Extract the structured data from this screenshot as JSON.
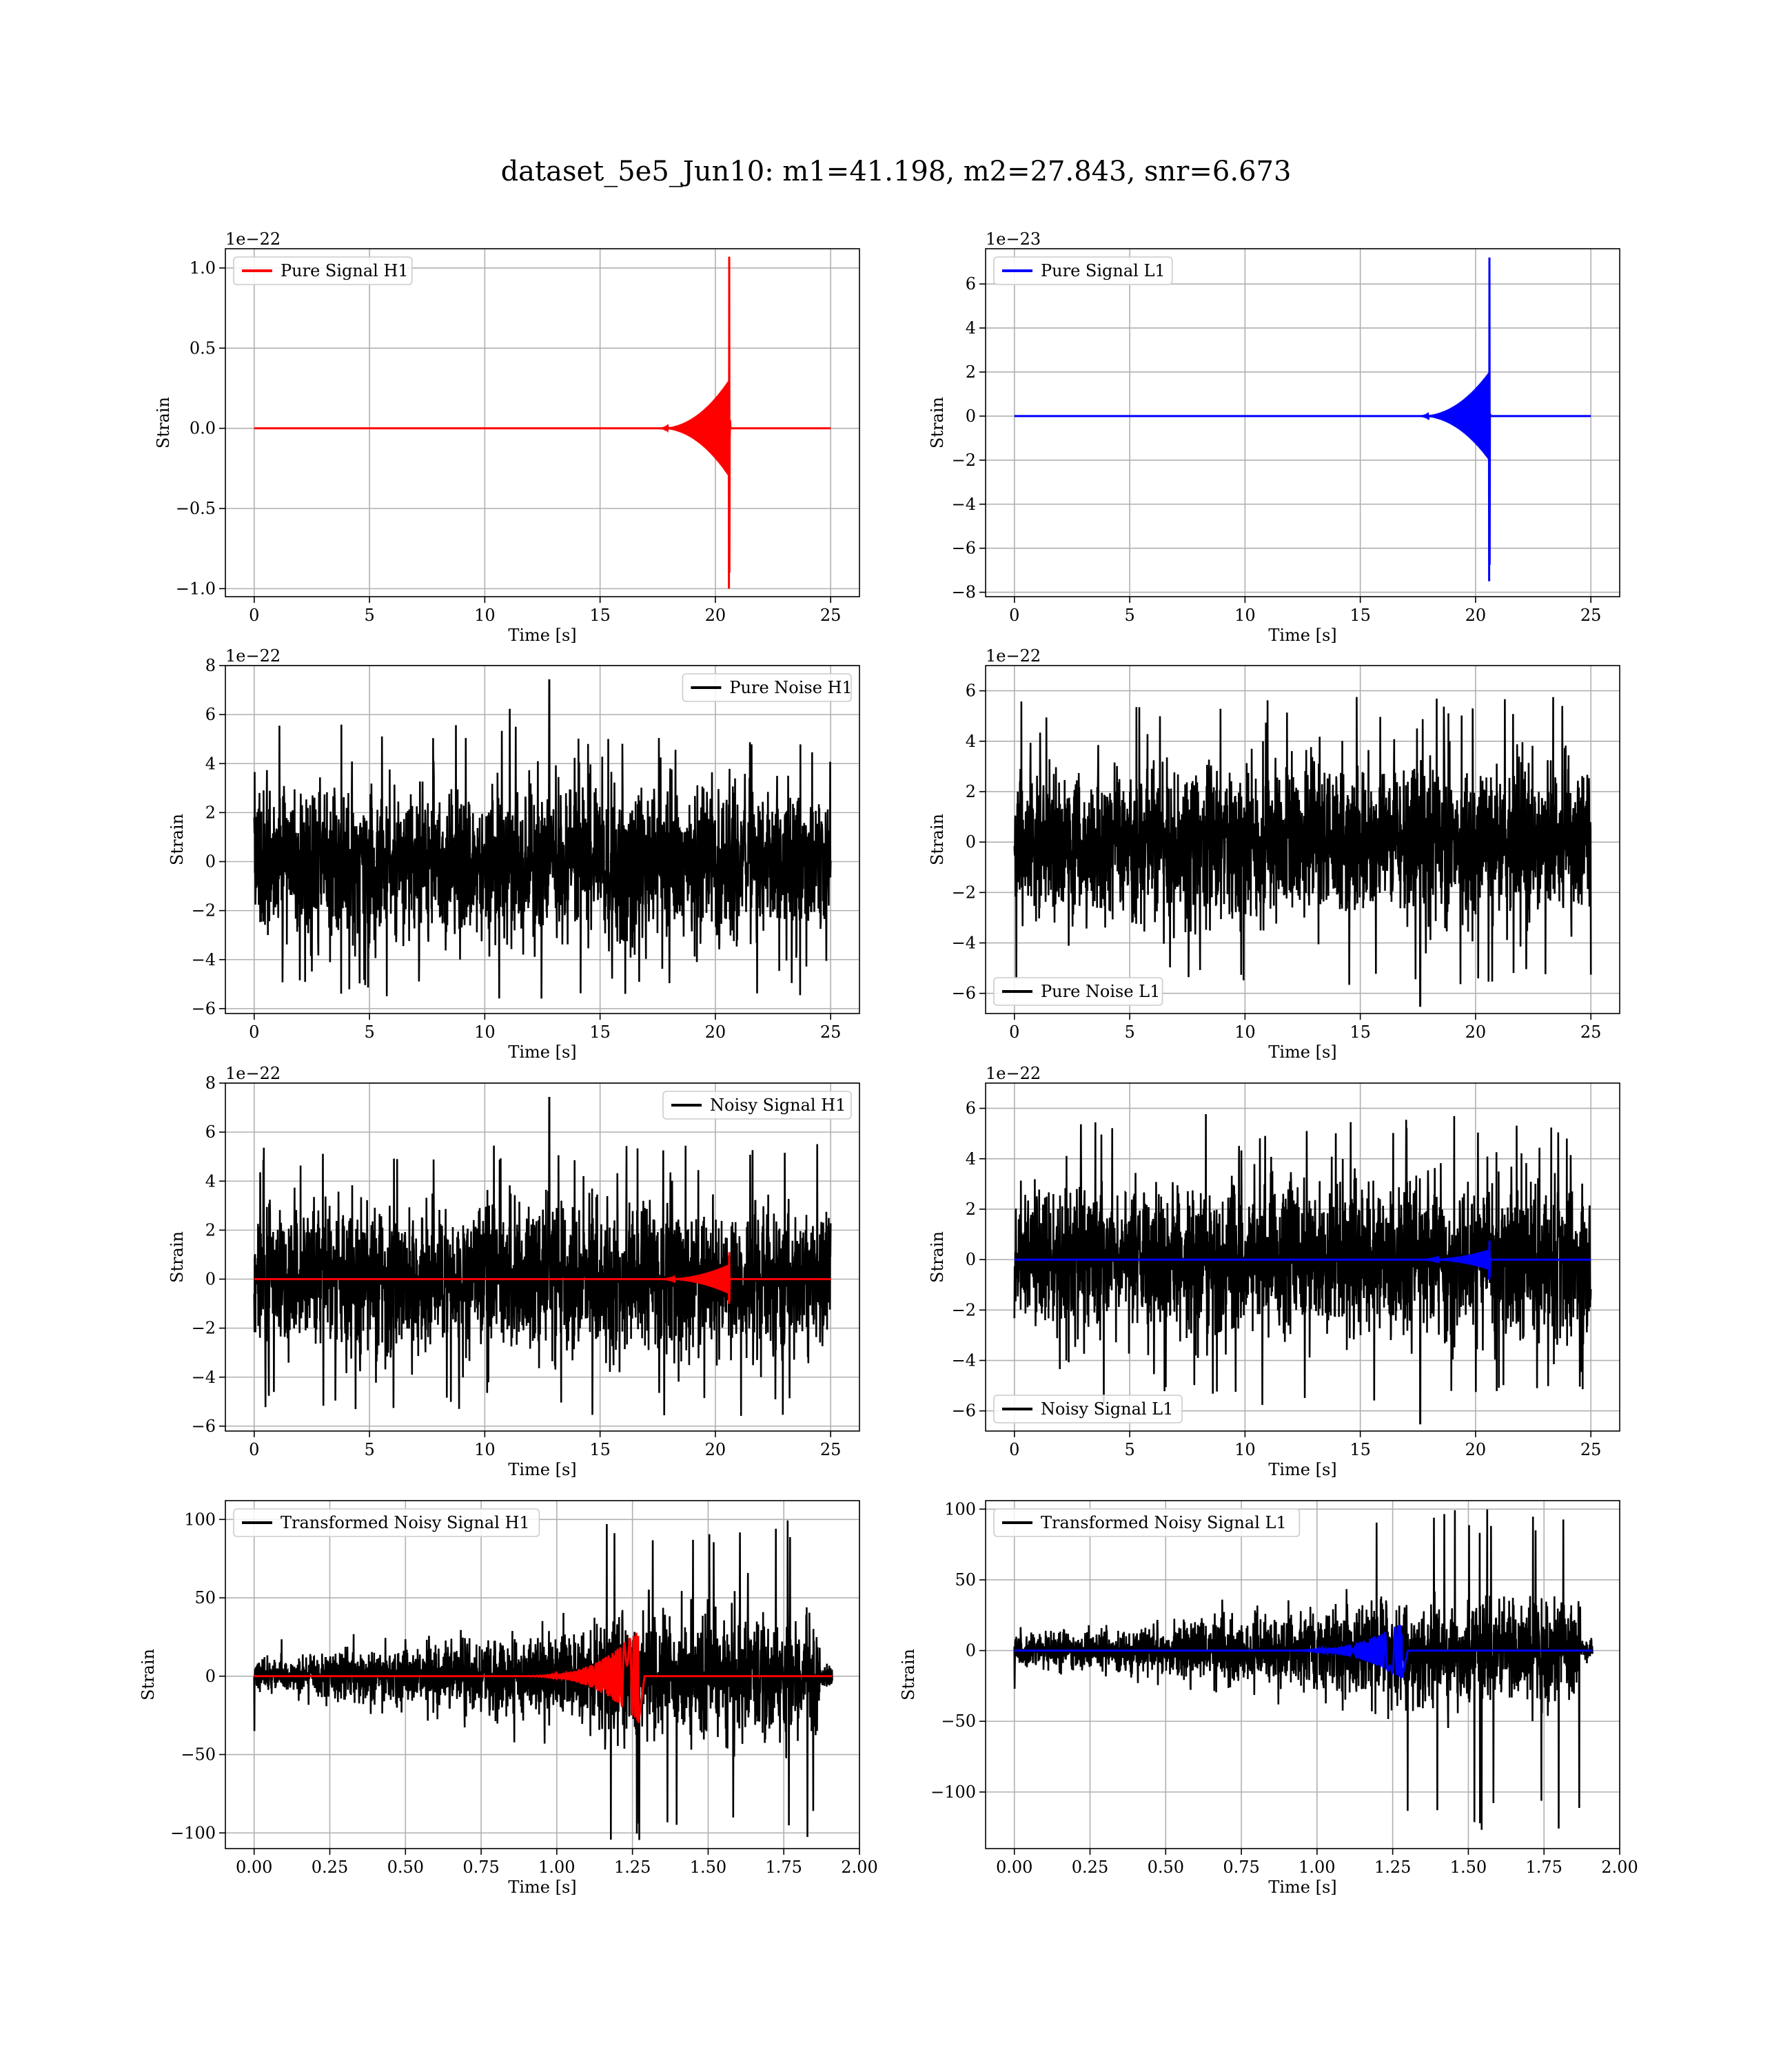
{
  "title": "dataset_5e5_Jun10: m1=41.198, m2=27.843, snr=6.673",
  "colors": {
    "h1": "#ff0000",
    "l1": "#0000ff",
    "noise": "#000000"
  },
  "chart_data": [
    {
      "type": "line",
      "panel": "pure-signal-h1",
      "xlabel": "Time [s]",
      "ylabel": "Strain",
      "exponent": "1e−22",
      "xlim": [
        -1.25,
        26.25
      ],
      "ylim": [
        -1.05,
        1.12
      ],
      "xticks": [
        "0",
        "5",
        "10",
        "15",
        "20",
        "25"
      ],
      "xtick_values": [
        0,
        5,
        10,
        15,
        20,
        25
      ],
      "yticks": [
        "−1.0",
        "−0.5",
        "0.0",
        "0.5",
        "1.0"
      ],
      "ytick_values": [
        -1.0,
        -0.5,
        0.0,
        0.5,
        1.0
      ],
      "legend": "upper-left",
      "series": [
        {
          "name": "Pure Signal H1",
          "role": "chirp",
          "color": "#ff0000",
          "x_end": 25,
          "merger": 20.6,
          "onset": 17.5,
          "pre_amp": 0.3,
          "peak_pos": 1.07,
          "peak_neg": -1.0
        }
      ]
    },
    {
      "type": "line",
      "panel": "pure-signal-l1",
      "xlabel": "Time [s]",
      "ylabel": "Strain",
      "exponent": "1e−23",
      "xlim": [
        -1.25,
        26.25
      ],
      "ylim": [
        -8.2,
        7.6
      ],
      "xticks": [
        "0",
        "5",
        "10",
        "15",
        "20",
        "25"
      ],
      "xtick_values": [
        0,
        5,
        10,
        15,
        20,
        25
      ],
      "yticks": [
        "−8",
        "−6",
        "−4",
        "−2",
        "0",
        "2",
        "4",
        "6"
      ],
      "ytick_values": [
        -8,
        -6,
        -4,
        -2,
        0,
        2,
        4,
        6
      ],
      "legend": "upper-left",
      "series": [
        {
          "name": "Pure Signal L1",
          "role": "chirp",
          "color": "#0000ff",
          "x_end": 25,
          "merger": 20.6,
          "onset": 17.5,
          "pre_amp": 2.0,
          "peak_pos": 7.2,
          "peak_neg": -7.5
        }
      ]
    },
    {
      "type": "line",
      "panel": "pure-noise-h1",
      "xlabel": "Time [s]",
      "ylabel": "Strain",
      "exponent": "1e−22",
      "xlim": [
        -1.25,
        26.25
      ],
      "ylim": [
        -6.2,
        8.0
      ],
      "xticks": [
        "0",
        "5",
        "10",
        "15",
        "20",
        "25"
      ],
      "xtick_values": [
        0,
        5,
        10,
        15,
        20,
        25
      ],
      "yticks": [
        "−6",
        "−4",
        "−2",
        "0",
        "2",
        "4",
        "6",
        "8"
      ],
      "ytick_values": [
        -6,
        -4,
        -2,
        0,
        2,
        4,
        6,
        8
      ],
      "legend": "upper-right",
      "series": [
        {
          "name": "Pure Noise H1",
          "role": "noise",
          "color": "#000000",
          "x_end": 25,
          "amp": 3.6,
          "tail": 5.6,
          "spike": [
            12.8,
            7.4
          ]
        }
      ]
    },
    {
      "type": "line",
      "panel": "pure-noise-l1",
      "xlabel": "Time [s]",
      "ylabel": "Strain",
      "exponent": "1e−22",
      "xlim": [
        -1.25,
        26.25
      ],
      "ylim": [
        -6.8,
        7.0
      ],
      "xticks": [
        "0",
        "5",
        "10",
        "15",
        "20",
        "25"
      ],
      "xtick_values": [
        0,
        5,
        10,
        15,
        20,
        25
      ],
      "yticks": [
        "−6",
        "−4",
        "−2",
        "0",
        "2",
        "4",
        "6"
      ],
      "ytick_values": [
        -6,
        -4,
        -2,
        0,
        2,
        4,
        6
      ],
      "legend": "lower-left",
      "series": [
        {
          "name": "Pure Noise L1",
          "role": "noise",
          "color": "#000000",
          "x_end": 25,
          "amp": 3.6,
          "tail": 5.8,
          "spike": [
            17.6,
            -6.5
          ]
        }
      ]
    },
    {
      "type": "line",
      "panel": "noisy-signal-h1",
      "xlabel": "Time [s]",
      "ylabel": "Strain",
      "exponent": "1e−22",
      "xlim": [
        -1.25,
        26.25
      ],
      "ylim": [
        -6.2,
        8.0
      ],
      "xticks": [
        "0",
        "5",
        "10",
        "15",
        "20",
        "25"
      ],
      "xtick_values": [
        0,
        5,
        10,
        15,
        20,
        25
      ],
      "yticks": [
        "−6",
        "−4",
        "−2",
        "0",
        "2",
        "4",
        "6",
        "8"
      ],
      "ytick_values": [
        -6,
        -4,
        -2,
        0,
        2,
        4,
        6,
        8
      ],
      "legend": "upper-right",
      "series": [
        {
          "name": "Noisy Signal H1",
          "role": "noise",
          "color": "#000000",
          "x_end": 25,
          "amp": 3.6,
          "tail": 5.6,
          "spike": [
            12.8,
            7.4
          ]
        },
        {
          "name": "",
          "role": "chirp",
          "color": "#ff0000",
          "x_end": 25,
          "merger": 20.6,
          "onset": 17.5,
          "pre_amp": 0.6,
          "peak_pos": 1.1,
          "peak_neg": -1.0
        }
      ]
    },
    {
      "type": "line",
      "panel": "noisy-signal-l1",
      "xlabel": "Time [s]",
      "ylabel": "Strain",
      "exponent": "1e−22",
      "xlim": [
        -1.25,
        26.25
      ],
      "ylim": [
        -6.8,
        7.0
      ],
      "xticks": [
        "0",
        "5",
        "10",
        "15",
        "20",
        "25"
      ],
      "xtick_values": [
        0,
        5,
        10,
        15,
        20,
        25
      ],
      "yticks": [
        "−6",
        "−4",
        "−2",
        "0",
        "2",
        "4",
        "6"
      ],
      "ytick_values": [
        -6,
        -4,
        -2,
        0,
        2,
        4,
        6
      ],
      "legend": "lower-left",
      "series": [
        {
          "name": "Noisy Signal L1",
          "role": "noise",
          "color": "#000000",
          "x_end": 25,
          "amp": 3.6,
          "tail": 5.8,
          "spike": [
            17.6,
            -6.5
          ]
        },
        {
          "name": "",
          "role": "chirp",
          "color": "#0000ff",
          "x_end": 25,
          "merger": 20.6,
          "onset": 17.5,
          "pre_amp": 0.4,
          "peak_pos": 0.75,
          "peak_neg": -0.8
        }
      ]
    },
    {
      "type": "line",
      "panel": "transformed-h1",
      "xlabel": "Time [s]",
      "ylabel": "Strain",
      "exponent": "",
      "xlim": [
        -0.095,
        2.0
      ],
      "ylim": [
        -110,
        112
      ],
      "xticks": [
        "0.00",
        "0.25",
        "0.50",
        "0.75",
        "1.00",
        "1.25",
        "1.50",
        "1.75",
        "2.00"
      ],
      "xtick_values": [
        0,
        0.25,
        0.5,
        0.75,
        1.0,
        1.25,
        1.5,
        1.75,
        2.0
      ],
      "yticks": [
        "−100",
        "−50",
        "0",
        "50",
        "100"
      ],
      "ytick_values": [
        -100,
        -50,
        0,
        50,
        100
      ],
      "legend": "upper-left",
      "series": [
        {
          "name": "Transformed Noisy Signal H1",
          "role": "tnoise",
          "color": "#000000",
          "x_end": 1.91,
          "lo_amp": 9,
          "hi_start": 1.12,
          "hi_end": 1.87,
          "hi_amp": 70,
          "spike_hi": 100,
          "spike_lo": -105,
          "start_dip": -35
        },
        {
          "name": "",
          "role": "tchirp",
          "color": "#ff0000",
          "x_end": 1.91,
          "merger": 1.27,
          "onset": 0.85,
          "peak": 30
        }
      ]
    },
    {
      "type": "line",
      "panel": "transformed-l1",
      "xlabel": "Time [s]",
      "ylabel": "Strain",
      "exponent": "",
      "xlim": [
        -0.095,
        2.0
      ],
      "ylim": [
        -140,
        106
      ],
      "xticks": [
        "0.00",
        "0.25",
        "0.50",
        "0.75",
        "1.00",
        "1.25",
        "1.50",
        "1.75",
        "2.00"
      ],
      "xtick_values": [
        0,
        0.25,
        0.5,
        0.75,
        1.0,
        1.25,
        1.5,
        1.75,
        2.0
      ],
      "yticks": [
        "−100",
        "−50",
        "0",
        "50",
        "100"
      ],
      "ytick_values": [
        -100,
        -50,
        0,
        50,
        100
      ],
      "legend": "upper-left",
      "series": [
        {
          "name": "Transformed Noisy Signal L1",
          "role": "tnoise",
          "color": "#000000",
          "x_end": 1.91,
          "lo_amp": 9,
          "hi_start": 1.1,
          "hi_end": 1.87,
          "hi_amp": 65,
          "spike_hi": 100,
          "spike_lo": -128,
          "start_dip": -27
        },
        {
          "name": "",
          "role": "tchirp",
          "color": "#0000ff",
          "x_end": 1.91,
          "merger": 1.28,
          "onset": 0.85,
          "peak": 20
        }
      ]
    }
  ]
}
